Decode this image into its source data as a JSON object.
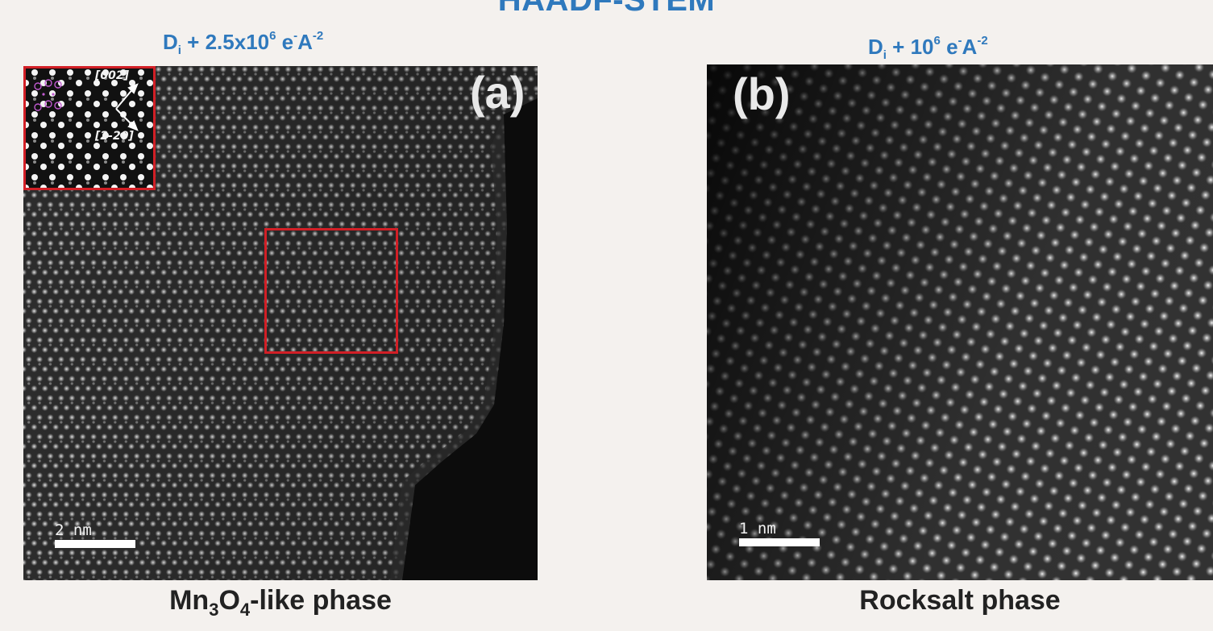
{
  "title": "HAADF-STEM",
  "panels": [
    {
      "dose": {
        "prefix": "D",
        "sub": "i",
        "mid": " + 2.5x10",
        "exp": "6",
        "unit": " e",
        "unit_sup": "-",
        "unit2": "A",
        "unit2_sup": "-2"
      },
      "label": "(a)",
      "scale": "2 nm",
      "inset": {
        "dir1": "[002]",
        "dir2": "[2-20]"
      },
      "caption": {
        "part1": "Mn",
        "sub1": "3",
        "part2": "O",
        "sub2": "4",
        "part3": "-like phase"
      }
    },
    {
      "dose": {
        "prefix": "D",
        "sub": "i",
        "mid": " + 10",
        "exp": "6",
        "unit": " e",
        "unit_sup": "-",
        "unit2": "A",
        "unit2_sup": "-2"
      },
      "label": "(b)",
      "scale": "1 nm",
      "caption": {
        "part1": "Rocksalt phase"
      }
    }
  ],
  "colors": {
    "accent_blue": "#2f79bd",
    "roi_red": "#d21f26"
  }
}
